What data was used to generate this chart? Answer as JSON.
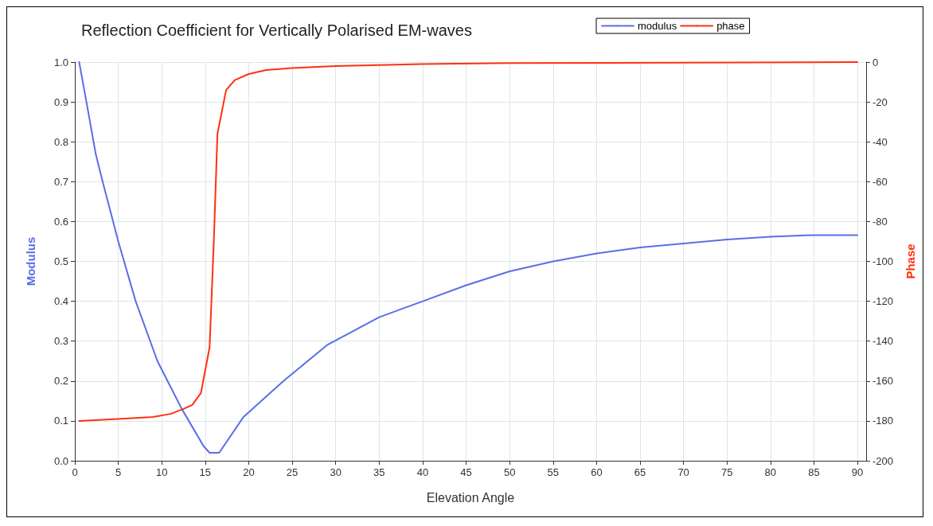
{
  "chart_data": {
    "type": "line",
    "title": "Reflection Coefficient for Vertically Polarised EM-waves",
    "xlabel": "Elevation Angle",
    "ylabel": "Modulus",
    "y2label": "Phase",
    "xlim": [
      0,
      91
    ],
    "xticks": [
      0,
      5,
      10,
      15,
      20,
      25,
      30,
      35,
      40,
      45,
      50,
      55,
      60,
      65,
      70,
      75,
      80,
      85,
      90
    ],
    "ylim": [
      0,
      1
    ],
    "yticks": [
      {
        "value": 0,
        "label": "0.0"
      },
      {
        "value": 0.1,
        "label": "0.1"
      },
      {
        "value": 0.2,
        "label": "0.2"
      },
      {
        "value": 0.3,
        "label": "0.3"
      },
      {
        "value": 0.4,
        "label": "0.4"
      },
      {
        "value": 0.5,
        "label": "0.5"
      },
      {
        "value": 0.6,
        "label": "0.6"
      },
      {
        "value": 0.7,
        "label": "0.7"
      },
      {
        "value": 0.8,
        "label": "0.8"
      },
      {
        "value": 0.9,
        "label": "0.9"
      },
      {
        "value": 1,
        "label": "1.0"
      }
    ],
    "y2lim": [
      -200,
      0
    ],
    "y2ticks": [
      -200,
      -180,
      -160,
      -140,
      -120,
      -100,
      -80,
      -60,
      -40,
      -20,
      0
    ],
    "grid": true,
    "legend": "top",
    "marker": "none",
    "line_style": "solid",
    "series": [
      {
        "name": "modulus",
        "color": "#5a6ee6",
        "x": [
          0.5,
          1.5,
          2.4,
          3.2,
          5,
          7,
          9.5,
          12.3,
          14.8,
          15.5,
          16.6,
          19.4,
          24,
          29,
          35,
          40,
          45,
          50,
          55,
          60,
          65,
          70,
          75,
          80,
          85,
          90
        ],
        "values": [
          1.0,
          0.88,
          0.77,
          0.7,
          0.55,
          0.4,
          0.25,
          0.13,
          0.037,
          0.02,
          0.02,
          0.11,
          0.2,
          0.29,
          0.36,
          0.4,
          0.44,
          0.475,
          0.5,
          0.52,
          0.535,
          0.545,
          0.555,
          0.562,
          0.566,
          0.566
        ]
      },
      {
        "name": "phase",
        "color": "#ff3010",
        "axis": "y2",
        "x": [
          0.5,
          5,
          9,
          11,
          12.5,
          13.5,
          14.5,
          15.5,
          16,
          16.4,
          17.4,
          18.4,
          20,
          22,
          25,
          30,
          40,
          50,
          90
        ],
        "values": [
          -180,
          -179,
          -178,
          -176.5,
          -174,
          -172,
          -166,
          -143,
          -88,
          -36,
          -14,
          -9,
          -6,
          -4,
          -3,
          -2,
          -1,
          -0.5,
          0
        ]
      }
    ]
  }
}
